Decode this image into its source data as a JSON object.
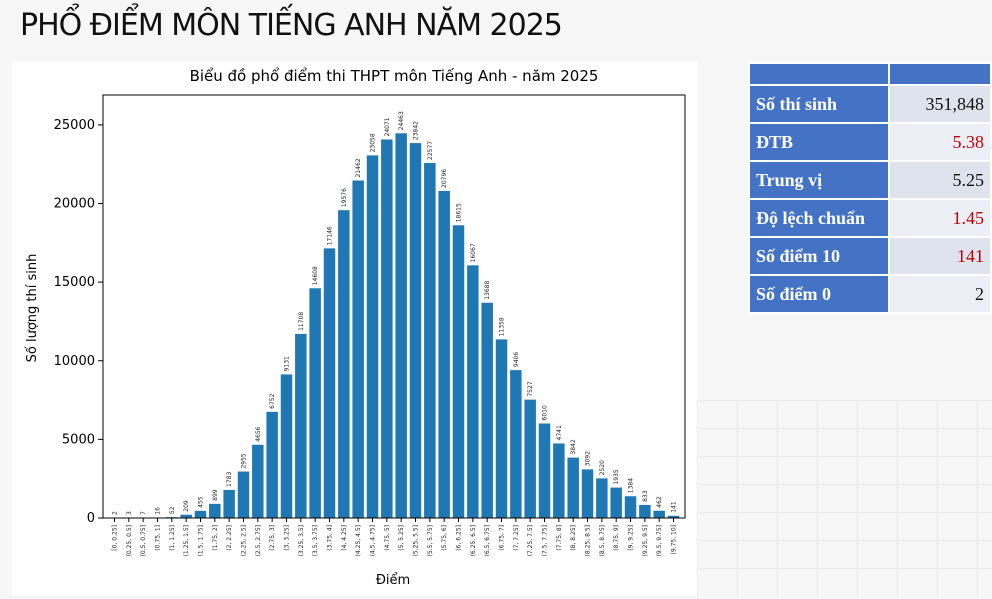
{
  "title": "PHỔ ĐIỂM MÔN TIẾNG ANH NĂM 2025",
  "chart_data": {
    "type": "bar",
    "title": "Biểu đồ phổ điểm thi THPT môn Tiếng Anh - năm 2025",
    "x_label": "Điểm",
    "y_label": "Số lượng thí sinh",
    "categories": [
      "[0, 0.25]",
      "(0.25, 0.5]",
      "(0.5, 0.75]",
      "(0.75, 1]",
      "(1, 1.25]",
      "(1.25, 1.5]",
      "(1.5, 1.75]",
      "(1.75, 2]",
      "(2, 2.25]",
      "(2.25, 2.5]",
      "(2.5, 2.75]",
      "(2.75, 3]",
      "(3, 3.25]",
      "(3.25, 3.5]",
      "(3.5, 3.75]",
      "(3.75, 4]",
      "(4, 4.25]",
      "(4.25, 4.5]",
      "(4.5, 4.75]",
      "(4.75, 5]",
      "(5, 5.25]",
      "(5.25, 5.5]",
      "(5.5, 5.75]",
      "(5.75, 6]",
      "(6, 6.25]",
      "(6.25, 6.5]",
      "(6.5, 6.75]",
      "(6.75, 7]",
      "(7, 7.25]",
      "(7.25, 7.5]",
      "(7.5, 7.75]",
      "(7.75, 8]",
      "(8, 8.25]",
      "(8.25, 8.5]",
      "(8.5, 8.75]",
      "(8.75, 9]",
      "(9, 9.25]",
      "(9.25, 9.5]",
      "(9.5, 9.75]",
      "(9.75, 10]"
    ],
    "values": [
      2,
      3,
      7,
      16,
      52,
      209,
      455,
      899,
      1783,
      2955,
      4656,
      6752,
      9131,
      11708,
      14608,
      17146,
      19576,
      21462,
      23058,
      24071,
      24463,
      23842,
      22577,
      20796,
      18615,
      16067,
      13688,
      11358,
      9406,
      7527,
      6010,
      4741,
      3842,
      3092,
      2520,
      1935,
      1384,
      833,
      462,
      141
    ],
    "color": "#1f77b4",
    "ylim": [
      0,
      26900
    ],
    "yticks": [
      0,
      5000,
      10000,
      15000,
      20000,
      25000
    ]
  },
  "table": {
    "rows": [
      [
        "Số thí sinh",
        "351,848"
      ],
      [
        "ĐTB",
        "5.38"
      ],
      [
        "Trung vị",
        "5.25"
      ],
      [
        "Độ lệch chuẩn",
        "1.45"
      ],
      [
        "Số điểm 10",
        "141"
      ],
      [
        "Số điểm 0",
        "2"
      ]
    ]
  }
}
